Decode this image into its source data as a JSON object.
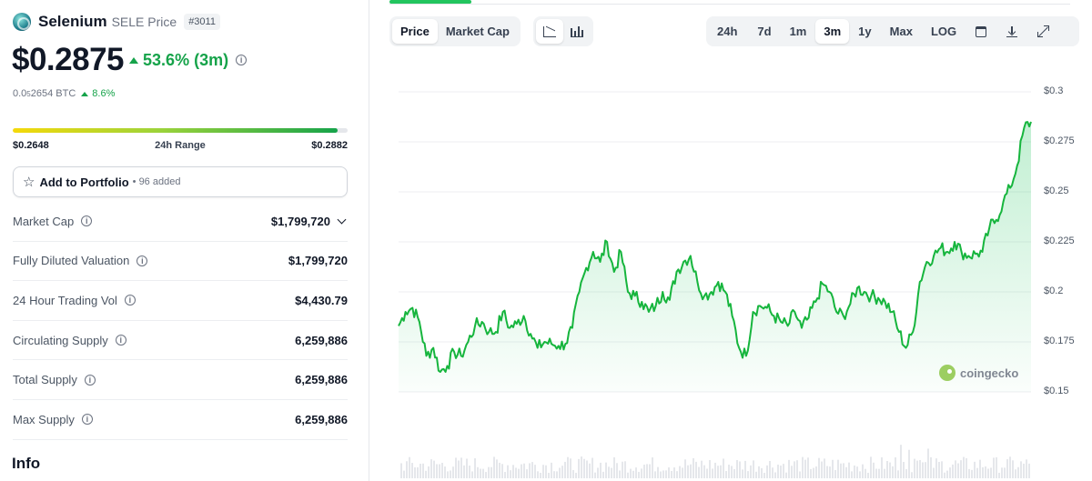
{
  "coin": {
    "name": "Selenium",
    "symbol_label": "SELE Price",
    "rank": "#3011",
    "price": "$0.2875",
    "change": "53.6% (3m)",
    "btc_prefix": "0.0",
    "btc_sub": "5",
    "btc_rest": "2654 BTC",
    "btc_change": "8.6%"
  },
  "range": {
    "low": "$0.2648",
    "label": "24h Range",
    "high": "$0.2882",
    "position": 0.97
  },
  "portfolio": {
    "label": "Add to Portfolio",
    "count": "• 96 added"
  },
  "stats": [
    {
      "label": "Market Cap",
      "value": "$1,799,720"
    },
    {
      "label": "Fully Diluted Valuation",
      "value": "$1,799,720"
    },
    {
      "label": "24 Hour Trading Vol",
      "value": "$4,430.79"
    },
    {
      "label": "Circulating Supply",
      "value": "6,259,886"
    },
    {
      "label": "Total Supply",
      "value": "6,259,886"
    },
    {
      "label": "Max Supply",
      "value": "6,259,886"
    }
  ],
  "info_title": "Info",
  "chart_tabs": {
    "price": "Price",
    "market_cap": "Market Cap"
  },
  "chart_view_icons": [
    "line-chart-icon",
    "candlestick-chart-icon"
  ],
  "time_ranges": [
    "24h",
    "7d",
    "1m",
    "3m",
    "1y",
    "Max",
    "LOG"
  ],
  "active_range": "3m",
  "toolbar_icons": [
    "calendar-icon",
    "download-icon",
    "expand-icon"
  ],
  "watermark": "coingecko",
  "colors": {
    "up": "#16a34a",
    "line": "#16b53d",
    "fill": "#22c55e",
    "range_start": "#f5d90a",
    "range_end": "#16a34a"
  },
  "chart_data": {
    "type": "area",
    "title": "",
    "xlabel": "",
    "ylabel": "",
    "ylim": [
      0.15,
      0.3
    ],
    "yticks": [
      "$0.3",
      "$0.275",
      "$0.25",
      "$0.225",
      "$0.2",
      "$0.175",
      "$0.15"
    ],
    "series": [
      {
        "values": [
          0.183,
          0.19,
          0.192,
          0.185,
          0.168,
          0.172,
          0.16,
          0.163,
          0.17,
          0.168,
          0.175,
          0.183,
          0.185,
          0.18,
          0.18,
          0.19,
          0.182,
          0.184,
          0.188,
          0.179,
          0.172,
          0.175,
          0.174,
          0.173,
          0.174,
          0.182,
          0.2,
          0.212,
          0.22,
          0.215,
          0.225,
          0.21,
          0.22,
          0.2,
          0.198,
          0.195,
          0.19,
          0.193,
          0.2,
          0.196,
          0.21,
          0.215,
          0.218,
          0.205,
          0.198,
          0.2,
          0.205,
          0.2,
          0.188,
          0.172,
          0.168,
          0.19,
          0.193,
          0.192,
          0.188,
          0.185,
          0.183,
          0.19,
          0.182,
          0.187,
          0.195,
          0.204,
          0.2,
          0.19,
          0.188,
          0.194,
          0.202,
          0.2,
          0.198,
          0.197,
          0.195,
          0.19,
          0.18,
          0.172,
          0.18,
          0.205,
          0.215,
          0.218,
          0.222,
          0.22,
          0.225,
          0.22,
          0.218,
          0.219,
          0.22,
          0.232,
          0.236,
          0.245,
          0.252,
          0.263,
          0.282,
          0.285
        ]
      }
    ]
  }
}
